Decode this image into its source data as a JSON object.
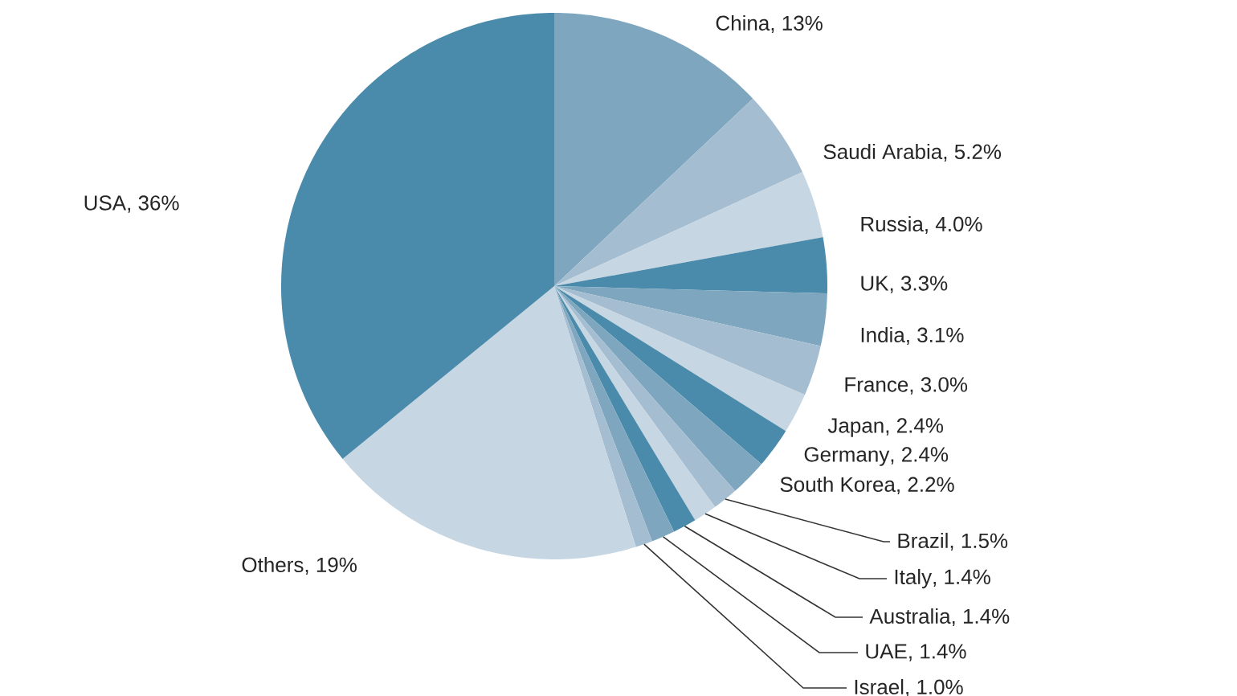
{
  "chart_data": {
    "type": "pie",
    "categories": [
      "China",
      "Saudi Arabia",
      "Russia",
      "UK",
      "India",
      "France",
      "Japan",
      "Germany",
      "South Korea",
      "Brazil",
      "Italy",
      "Australia",
      "UAE",
      "Israel",
      "Others",
      "USA"
    ],
    "values": [
      13,
      5.2,
      4.0,
      3.3,
      3.1,
      3.0,
      2.4,
      2.4,
      2.2,
      1.5,
      1.4,
      1.4,
      1.4,
      1.0,
      19,
      36
    ],
    "value_labels": [
      ", 13%",
      ", 5.2%",
      ", 4.0%",
      ", 3.3%",
      ", 3.1%",
      ", 3.0%",
      ", 2.4%",
      ", 2.4%",
      ", 2.2%",
      ", 1.5%",
      ", 1.4%",
      ", 1.4%",
      ", 1.4%",
      ", 1.0%",
      ", 19%",
      ", 36%"
    ],
    "colors": [
      "#7ea7bf",
      "#a4bdd0",
      "#c6d6e2",
      "#4a8aaa",
      "#7ea7bf",
      "#a4bdd0",
      "#c6d6e2",
      "#4a8aaa",
      "#7ea7bf",
      "#a4bdd0",
      "#c6d6e2",
      "#4a8aaa",
      "#7ea7bf",
      "#a4bdd0",
      "#c6d6e2",
      "#4a8aaa"
    ]
  }
}
